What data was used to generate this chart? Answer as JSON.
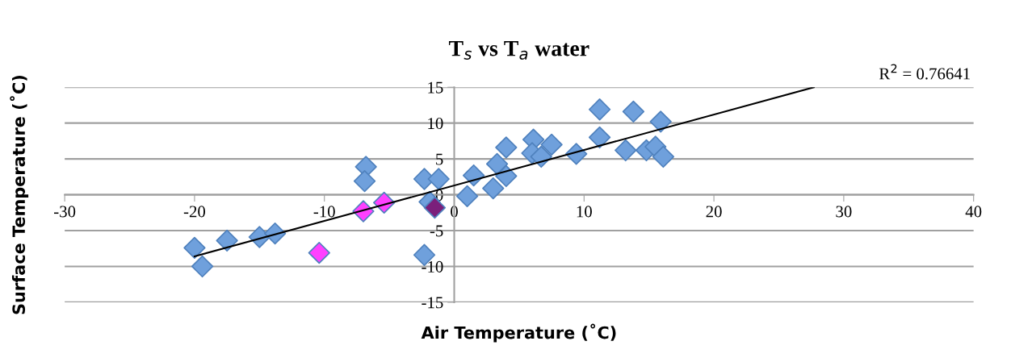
{
  "chart_data": {
    "type": "scatter",
    "title": "T$_{s}$ vs T$_{a}$ water",
    "xlabel": "Air Temperature (˚C)",
    "ylabel": "Surface Temperature (˚C)",
    "xlim": [
      -30,
      40
    ],
    "xticks": [
      -30,
      -20,
      -10,
      0,
      10,
      20,
      30,
      40
    ],
    "ylim": [
      -15,
      15
    ],
    "yticks": [
      -15,
      -10,
      -5,
      0,
      5,
      10,
      15
    ],
    "grid": "y",
    "legend": false,
    "series": [
      {
        "marker": "diamond",
        "color": "#6fa0dc",
        "x": [
          -20.0,
          -19.4,
          -17.5,
          -15.0,
          -13.8,
          -6.8,
          -6.9,
          -2.3,
          -1.2,
          -2.3,
          -1.9,
          1.0,
          1.5,
          3.0,
          3.3,
          4.0,
          4.0,
          6.1,
          6.0,
          6.7,
          7.5,
          9.4,
          11.2,
          11.2,
          13.8,
          13.2,
          14.8,
          15.5,
          16.1,
          15.9
        ],
        "values": [
          -7.4,
          -10.0,
          -6.4,
          -5.9,
          -5.4,
          3.9,
          1.9,
          2.2,
          2.2,
          -8.4,
          -1.0,
          -0.2,
          2.7,
          0.9,
          4.3,
          2.6,
          6.6,
          7.7,
          5.8,
          5.3,
          7.0,
          5.7,
          11.9,
          8.0,
          11.6,
          6.2,
          6.2,
          6.7,
          5.3,
          10.2
        ]
      },
      {
        "marker": "diamond",
        "color": "#ff40ff",
        "x": [
          -10.4,
          -7.0,
          -5.4
        ],
        "values": [
          -8.1,
          -2.3,
          -1.1
        ]
      },
      {
        "marker": "diamond",
        "color": "#7b1f7b",
        "x": [
          -1.5
        ],
        "values": [
          -1.8
        ]
      },
      {
        "type": "line",
        "marker": "none",
        "color": "#000000",
        "x": [
          -20,
          27.7
        ],
        "values": [
          -8.6,
          15
        ]
      }
    ],
    "annotations": [
      "R$^{2}$ = 0.76641"
    ]
  }
}
